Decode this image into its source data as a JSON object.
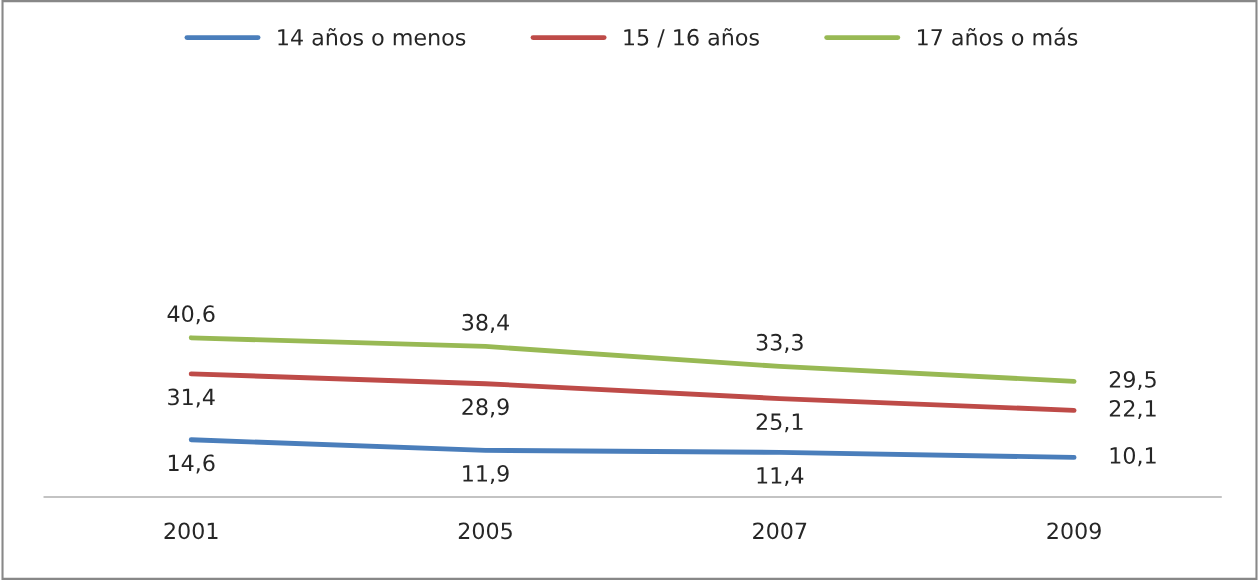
{
  "chart_data": {
    "type": "line",
    "categories": [
      "2001",
      "2005",
      "2007",
      "2009"
    ],
    "series": [
      {
        "name": "14 años o menos",
        "color": "#4a7ebb",
        "values": [
          14.6,
          11.9,
          11.4,
          10.1
        ],
        "value_labels": [
          "14,6",
          "11,9",
          "11,4",
          "10,1"
        ]
      },
      {
        "name": "15 / 16 años",
        "color": "#be4b48",
        "values": [
          31.4,
          28.9,
          25.1,
          22.1
        ],
        "value_labels": [
          "31,4",
          "28,9",
          "25,1",
          "22,1"
        ]
      },
      {
        "name": "17 años o más",
        "color": "#98b954",
        "values": [
          40.6,
          38.4,
          33.3,
          29.5
        ],
        "value_labels": [
          "40,6",
          "38,4",
          "33,3",
          "29,5"
        ]
      }
    ],
    "legend": "top",
    "marker": "none",
    "line_style": "solid",
    "tick_labels": "x"
  }
}
